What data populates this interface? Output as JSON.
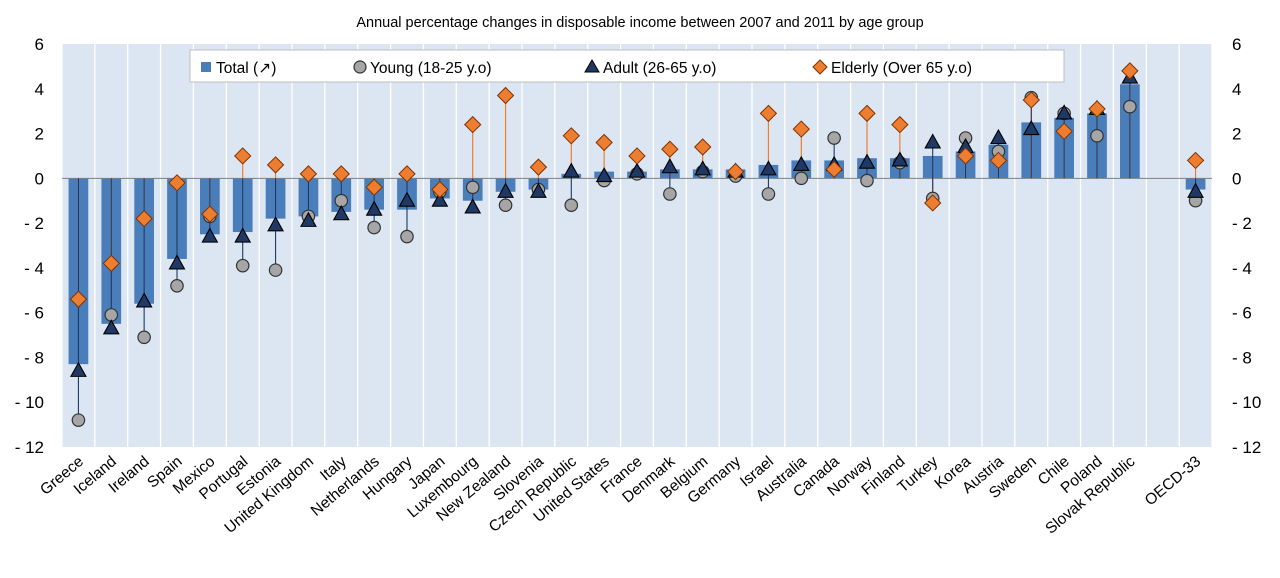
{
  "chart_data": {
    "type": "bar",
    "title": "Annual percentage changes in disposable income between 2007 and 2011 by age group",
    "categories": [
      "Greece",
      "Iceland",
      "Ireland",
      "Spain",
      "Mexico",
      "Portugal",
      "Estonia",
      "United Kingdom",
      "Italy",
      "Netherlands",
      "Hungary",
      "Japan",
      "Luxembourg",
      "New Zealand",
      "Slovenia",
      "Czech Republic",
      "United States",
      "France",
      "Denmark",
      "Belgium",
      "Germany",
      "Israel",
      "Australia",
      "Canada",
      "Norway",
      "Finland",
      "Turkey",
      "Korea",
      "Austria",
      "Sweden",
      "Chile",
      "Poland",
      "Slovak Republic",
      "",
      "OECD-33"
    ],
    "series": [
      {
        "name": "Total",
        "legend_label": "Total",
        "legend_suffix": "(↗)",
        "kind": "bar",
        "color": "#4a7ebb",
        "values": [
          -8.3,
          -6.5,
          -5.6,
          -3.6,
          -2.5,
          -2.4,
          -1.8,
          -1.7,
          -1.5,
          -1.4,
          -1.4,
          -0.9,
          -1.0,
          -0.6,
          -0.5,
          0.2,
          0.3,
          0.3,
          0.4,
          0.4,
          0.4,
          0.6,
          0.8,
          0.8,
          0.9,
          0.9,
          1.0,
          1.2,
          1.5,
          2.5,
          2.7,
          2.9,
          4.2,
          null,
          -0.5
        ]
      },
      {
        "name": "Young (18-25 y.o)",
        "legend_label": "Young (18-25 y.o)",
        "kind": "circle",
        "color": "#a6a6a6",
        "values": [
          -10.8,
          -6.1,
          -7.1,
          -4.8,
          -1.7,
          -3.9,
          -4.1,
          -1.7,
          -1.0,
          -2.2,
          -2.6,
          -0.6,
          -0.4,
          -1.2,
          -0.5,
          -1.2,
          -0.1,
          0.2,
          -0.7,
          0.3,
          0.1,
          -0.7,
          0.0,
          1.8,
          -0.1,
          0.7,
          -0.9,
          1.8,
          1.2,
          3.6,
          2.9,
          1.9,
          3.2,
          null,
          -1.0
        ]
      },
      {
        "name": "Adult (26-65 y.o)",
        "legend_label": "Adult (26-65 y.o)",
        "kind": "triangle",
        "color": "#1f3864",
        "values": [
          -8.6,
          -6.7,
          -5.5,
          -3.8,
          -2.6,
          -2.6,
          -2.1,
          -1.9,
          -1.6,
          -1.4,
          -1.0,
          -1.0,
          -1.3,
          -0.6,
          -0.6,
          0.3,
          0.1,
          0.3,
          0.5,
          0.4,
          0.3,
          0.4,
          0.6,
          0.6,
          0.7,
          0.8,
          1.6,
          1.4,
          1.8,
          2.2,
          2.9,
          3.1,
          4.5,
          null,
          -0.6
        ]
      },
      {
        "name": "Elderly (Over 65 y.o)",
        "legend_label": "Elderly (Over 65 y.o)",
        "kind": "diamond",
        "color": "#ed7d31",
        "values": [
          -5.4,
          -3.8,
          -1.8,
          -0.2,
          -1.6,
          1.0,
          0.6,
          0.2,
          0.2,
          -0.4,
          0.2,
          -0.5,
          2.4,
          3.7,
          0.5,
          1.9,
          1.6,
          1.0,
          1.3,
          1.4,
          0.3,
          2.9,
          2.2,
          0.4,
          2.9,
          2.4,
          -1.1,
          1.0,
          0.8,
          3.5,
          2.1,
          3.1,
          4.8,
          null,
          0.8
        ]
      }
    ],
    "ylim": [
      -12,
      6
    ],
    "yticks": [
      6,
      4,
      2,
      0,
      -2,
      -4,
      -6,
      -8,
      -10,
      -12
    ],
    "ytick_labels": [
      "6",
      "4",
      "2",
      "0",
      "- 2",
      "- 4",
      "- 6",
      "- 8",
      "- 10",
      "- 12"
    ],
    "xlabel": "",
    "ylabel": "",
    "grid": "vertical",
    "legend_position": "top",
    "plot_background": "#dce6f2"
  }
}
